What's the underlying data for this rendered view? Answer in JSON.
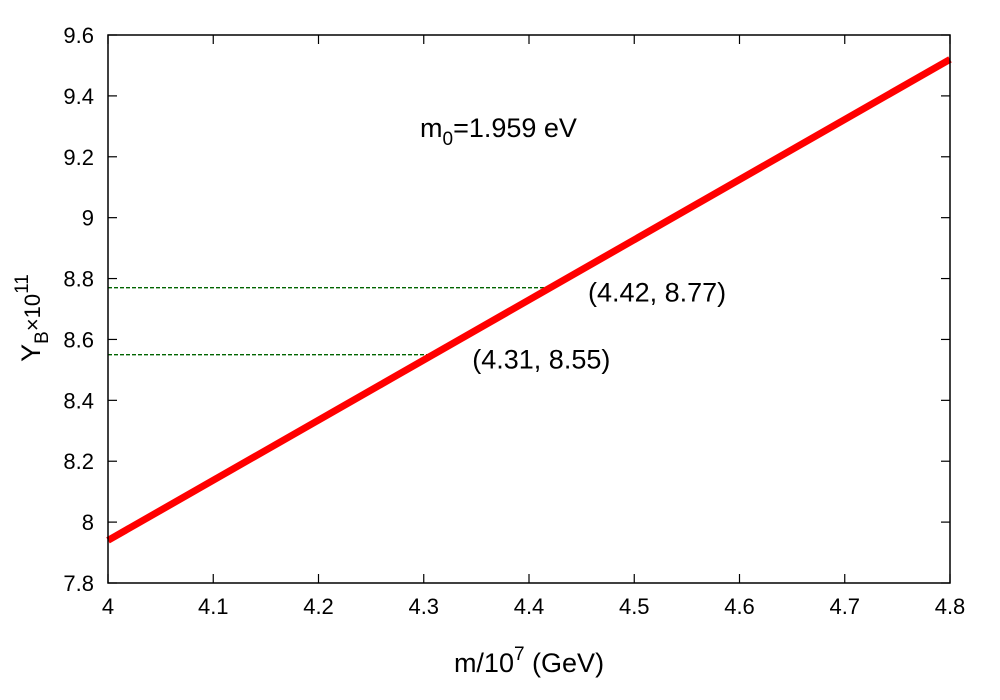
{
  "chart_data": {
    "type": "line",
    "xlabel": "m/10",
    "xlabel_sup": "7",
    "xlabel_unit": " (GeV)",
    "ylabel_base": "Y",
    "ylabel_sub": "B",
    "ylabel_times": "×10",
    "ylabel_sup": "11",
    "xlim": [
      4.0,
      4.8
    ],
    "ylim": [
      7.8,
      9.6
    ],
    "x_ticks": [
      "4",
      "4.1",
      "4.2",
      "4.3",
      "4.4",
      "4.5",
      "4.6",
      "4.7",
      "4.8"
    ],
    "y_ticks": [
      "7.8",
      "8",
      "8.2",
      "8.4",
      "8.6",
      "8.8",
      "9",
      "9.2",
      "9.4",
      "9.6"
    ],
    "series": [
      {
        "x": [
          4.0,
          4.8
        ],
        "y": [
          7.94,
          9.52
        ],
        "color": "#ff0000"
      }
    ],
    "reference_points": [
      {
        "x": 4.42,
        "y": 8.77,
        "label": "(4.42, 8.77)",
        "color": "#006400"
      },
      {
        "x": 4.31,
        "y": 8.55,
        "label": "(4.31, 8.55)",
        "color": "#006400"
      }
    ],
    "annotation": {
      "base": "m",
      "sub": "0",
      "rest": "=1.959 eV"
    },
    "grid": false
  }
}
